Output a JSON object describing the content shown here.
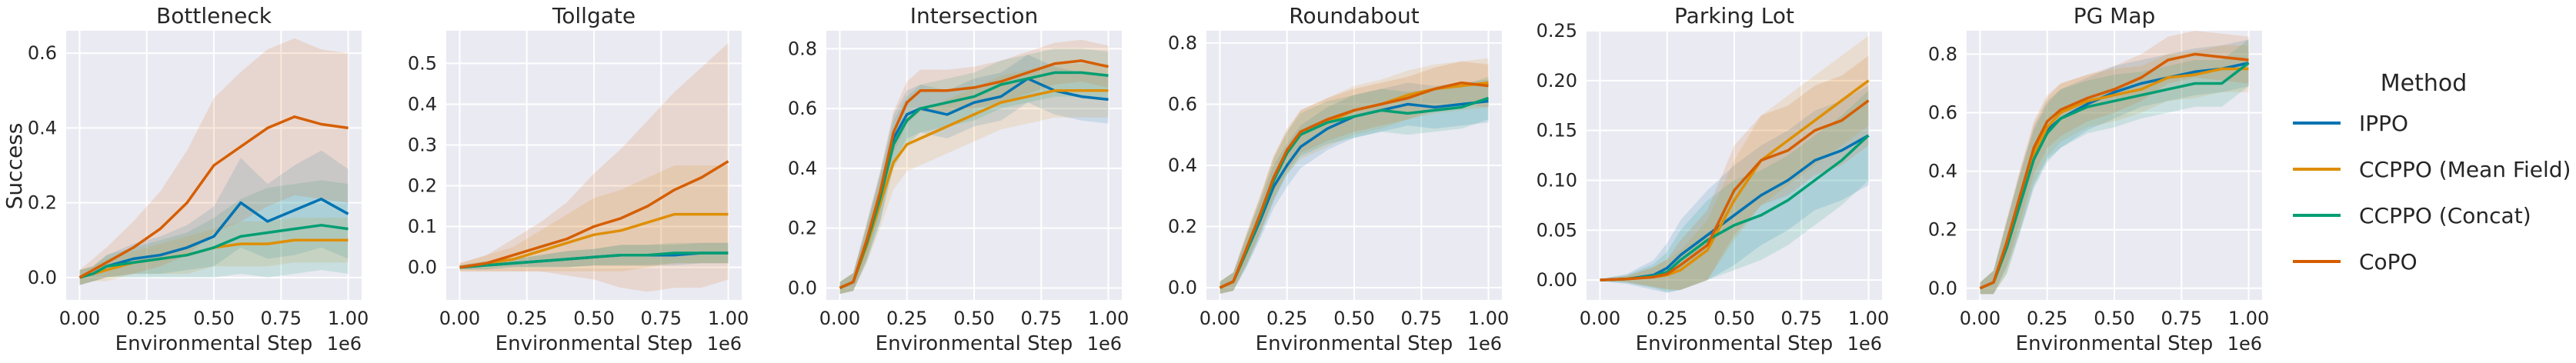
{
  "figure": {
    "ylabel": "Success",
    "xlabel": "Environmental Step",
    "x_multiplier": "1e6",
    "background": "#eaeaf2",
    "grid_color": "#ffffff"
  },
  "legend": {
    "title": "Method",
    "entries": [
      {
        "name": "IPPO",
        "color": "#0173b2"
      },
      {
        "name": "CCPPO (Mean Field)",
        "color": "#de8f05"
      },
      {
        "name": "CCPPO (Concat)",
        "color": "#029e73"
      },
      {
        "name": "CoPO",
        "color": "#d55e00"
      }
    ]
  },
  "chart_data": [
    {
      "type": "line",
      "title": "Bottleneck",
      "xlabel": "Environmental Step",
      "ylabel": "Success",
      "xlim": [
        -0.05,
        1.05
      ],
      "ylim": [
        -0.06,
        0.66
      ],
      "xticks": [
        "0.00",
        "0.25",
        "0.50",
        "0.75",
        "1.00"
      ],
      "yticks": [
        "0.0",
        "0.2",
        "0.4",
        "0.6"
      ],
      "x": [
        0,
        0.05,
        0.1,
        0.2,
        0.3,
        0.4,
        0.5,
        0.6,
        0.7,
        0.8,
        0.9,
        1.0
      ],
      "series": [
        {
          "name": "IPPO",
          "values": [
            0,
            0.01,
            0.03,
            0.05,
            0.06,
            0.08,
            0.11,
            0.2,
            0.15,
            0.18,
            0.21,
            0.17
          ],
          "band": [
            0.02,
            0.02,
            0.03,
            0.04,
            0.05,
            0.06,
            0.08,
            0.12,
            0.1,
            0.12,
            0.13,
            0.12
          ]
        },
        {
          "name": "CCPPO (Mean Field)",
          "values": [
            0,
            0.01,
            0.02,
            0.04,
            0.05,
            0.06,
            0.08,
            0.09,
            0.09,
            0.1,
            0.1,
            0.1
          ],
          "band": [
            0.02,
            0.02,
            0.03,
            0.03,
            0.04,
            0.05,
            0.05,
            0.06,
            0.06,
            0.06,
            0.06,
            0.06
          ]
        },
        {
          "name": "CCPPO (Concat)",
          "values": [
            0,
            0.01,
            0.03,
            0.04,
            0.05,
            0.06,
            0.08,
            0.11,
            0.12,
            0.13,
            0.14,
            0.13
          ],
          "band": [
            0.02,
            0.02,
            0.03,
            0.04,
            0.05,
            0.06,
            0.08,
            0.1,
            0.12,
            0.12,
            0.12,
            0.12
          ]
        },
        {
          "name": "CoPO",
          "values": [
            0,
            0.02,
            0.04,
            0.08,
            0.13,
            0.2,
            0.3,
            0.35,
            0.4,
            0.43,
            0.41,
            0.4
          ],
          "band": [
            0.02,
            0.03,
            0.04,
            0.07,
            0.1,
            0.14,
            0.18,
            0.2,
            0.21,
            0.21,
            0.2,
            0.2
          ]
        }
      ]
    },
    {
      "type": "line",
      "title": "Tollgate",
      "xlabel": "Environmental Step",
      "ylabel": "",
      "xlim": [
        -0.05,
        1.05
      ],
      "ylim": [
        -0.08,
        0.58
      ],
      "xticks": [
        "0.00",
        "0.25",
        "0.50",
        "0.75",
        "1.00"
      ],
      "yticks": [
        "0.0",
        "0.1",
        "0.2",
        "0.3",
        "0.4",
        "0.5"
      ],
      "x": [
        0,
        0.1,
        0.2,
        0.3,
        0.4,
        0.5,
        0.6,
        0.7,
        0.8,
        0.9,
        1.0
      ],
      "series": [
        {
          "name": "IPPO",
          "values": [
            0,
            0.005,
            0.01,
            0.015,
            0.02,
            0.025,
            0.03,
            0.03,
            0.03,
            0.035,
            0.035
          ],
          "band": [
            0.005,
            0.01,
            0.01,
            0.015,
            0.02,
            0.02,
            0.025,
            0.025,
            0.025,
            0.025,
            0.025
          ]
        },
        {
          "name": "CCPPO (Mean Field)",
          "values": [
            0,
            0.01,
            0.02,
            0.04,
            0.06,
            0.08,
            0.09,
            0.11,
            0.13,
            0.13,
            0.13
          ],
          "band": [
            0.01,
            0.02,
            0.03,
            0.05,
            0.07,
            0.09,
            0.1,
            0.11,
            0.12,
            0.12,
            0.12
          ]
        },
        {
          "name": "CCPPO (Concat)",
          "values": [
            0,
            0.005,
            0.01,
            0.015,
            0.02,
            0.025,
            0.03,
            0.03,
            0.035,
            0.035,
            0.035
          ],
          "band": [
            0.005,
            0.01,
            0.01,
            0.015,
            0.02,
            0.02,
            0.025,
            0.025,
            0.025,
            0.025,
            0.025
          ]
        },
        {
          "name": "CoPO",
          "values": [
            0,
            0.01,
            0.03,
            0.05,
            0.07,
            0.1,
            0.12,
            0.15,
            0.19,
            0.22,
            0.26
          ],
          "band": [
            0.01,
            0.02,
            0.04,
            0.06,
            0.09,
            0.13,
            0.17,
            0.21,
            0.24,
            0.27,
            0.29
          ]
        }
      ]
    },
    {
      "type": "line",
      "title": "Intersection",
      "xlabel": "Environmental Step",
      "ylabel": "",
      "xlim": [
        -0.05,
        1.05
      ],
      "ylim": [
        -0.04,
        0.86
      ],
      "xticks": [
        "0.00",
        "0.25",
        "0.50",
        "0.75",
        "1.00"
      ],
      "yticks": [
        "0.0",
        "0.2",
        "0.4",
        "0.6",
        "0.8"
      ],
      "x": [
        0,
        0.05,
        0.1,
        0.15,
        0.2,
        0.25,
        0.3,
        0.4,
        0.5,
        0.6,
        0.7,
        0.8,
        0.9,
        1.0
      ],
      "series": [
        {
          "name": "IPPO",
          "values": [
            0,
            0.02,
            0.15,
            0.3,
            0.5,
            0.58,
            0.6,
            0.58,
            0.62,
            0.64,
            0.7,
            0.66,
            0.64,
            0.63
          ],
          "band": [
            0.02,
            0.03,
            0.06,
            0.08,
            0.08,
            0.08,
            0.08,
            0.08,
            0.08,
            0.08,
            0.08,
            0.08,
            0.08,
            0.08
          ]
        },
        {
          "name": "CCPPO (Mean Field)",
          "values": [
            0,
            0.02,
            0.14,
            0.28,
            0.42,
            0.48,
            0.5,
            0.54,
            0.58,
            0.62,
            0.64,
            0.66,
            0.66,
            0.66
          ],
          "band": [
            0.02,
            0.03,
            0.06,
            0.08,
            0.09,
            0.09,
            0.09,
            0.09,
            0.09,
            0.09,
            0.09,
            0.09,
            0.09,
            0.09
          ]
        },
        {
          "name": "CCPPO (Concat)",
          "values": [
            0,
            0.02,
            0.15,
            0.3,
            0.48,
            0.56,
            0.6,
            0.62,
            0.64,
            0.68,
            0.7,
            0.72,
            0.72,
            0.71
          ],
          "band": [
            0.02,
            0.03,
            0.06,
            0.08,
            0.08,
            0.08,
            0.08,
            0.08,
            0.08,
            0.08,
            0.08,
            0.08,
            0.08,
            0.08
          ]
        },
        {
          "name": "CoPO",
          "values": [
            0,
            0.02,
            0.16,
            0.32,
            0.52,
            0.62,
            0.66,
            0.66,
            0.67,
            0.69,
            0.72,
            0.75,
            0.76,
            0.74
          ],
          "band": [
            0.02,
            0.03,
            0.06,
            0.07,
            0.07,
            0.07,
            0.07,
            0.07,
            0.07,
            0.07,
            0.07,
            0.07,
            0.07,
            0.07
          ]
        }
      ]
    },
    {
      "type": "line",
      "title": "Roundabout",
      "xlabel": "Environmental Step",
      "ylabel": "",
      "xlim": [
        -0.05,
        1.05
      ],
      "ylim": [
        -0.04,
        0.84
      ],
      "xticks": [
        "0.00",
        "0.25",
        "0.50",
        "0.75",
        "1.00"
      ],
      "yticks": [
        "0.0",
        "0.2",
        "0.4",
        "0.6",
        "0.8"
      ],
      "x": [
        0,
        0.05,
        0.1,
        0.15,
        0.2,
        0.25,
        0.3,
        0.4,
        0.5,
        0.6,
        0.7,
        0.8,
        0.9,
        1.0
      ],
      "series": [
        {
          "name": "IPPO",
          "values": [
            0,
            0.02,
            0.12,
            0.22,
            0.33,
            0.4,
            0.46,
            0.52,
            0.56,
            0.58,
            0.6,
            0.59,
            0.6,
            0.61
          ],
          "band": [
            0.02,
            0.03,
            0.05,
            0.06,
            0.07,
            0.07,
            0.07,
            0.07,
            0.07,
            0.07,
            0.07,
            0.07,
            0.07,
            0.07
          ]
        },
        {
          "name": "CCPPO (Mean Field)",
          "values": [
            0,
            0.02,
            0.13,
            0.24,
            0.36,
            0.44,
            0.5,
            0.54,
            0.58,
            0.6,
            0.63,
            0.65,
            0.66,
            0.67
          ],
          "band": [
            0.02,
            0.03,
            0.05,
            0.06,
            0.07,
            0.07,
            0.08,
            0.08,
            0.08,
            0.08,
            0.08,
            0.08,
            0.08,
            0.08
          ]
        },
        {
          "name": "CCPPO (Concat)",
          "values": [
            0,
            0.02,
            0.12,
            0.23,
            0.35,
            0.44,
            0.5,
            0.54,
            0.56,
            0.58,
            0.57,
            0.58,
            0.59,
            0.62
          ],
          "band": [
            0.02,
            0.03,
            0.05,
            0.06,
            0.07,
            0.07,
            0.07,
            0.07,
            0.07,
            0.07,
            0.07,
            0.07,
            0.07,
            0.07
          ]
        },
        {
          "name": "CoPO",
          "values": [
            0,
            0.02,
            0.13,
            0.24,
            0.36,
            0.45,
            0.51,
            0.55,
            0.58,
            0.6,
            0.62,
            0.65,
            0.67,
            0.66
          ],
          "band": [
            0.02,
            0.03,
            0.05,
            0.06,
            0.07,
            0.07,
            0.07,
            0.07,
            0.07,
            0.07,
            0.07,
            0.07,
            0.07,
            0.07
          ]
        }
      ]
    },
    {
      "type": "line",
      "title": "Parking Lot",
      "xlabel": "Environmental Step",
      "ylabel": "",
      "xlim": [
        -0.05,
        1.05
      ],
      "ylim": [
        -0.02,
        0.25
      ],
      "xticks": [
        "0.00",
        "0.25",
        "0.50",
        "0.75",
        "1.00"
      ],
      "yticks": [
        "0.00",
        "0.05",
        "0.10",
        "0.15",
        "0.20",
        "0.25"
      ],
      "x": [
        0,
        0.1,
        0.2,
        0.25,
        0.3,
        0.4,
        0.5,
        0.6,
        0.7,
        0.8,
        0.9,
        1.0
      ],
      "series": [
        {
          "name": "IPPO",
          "values": [
            0,
            0.001,
            0.005,
            0.012,
            0.025,
            0.045,
            0.065,
            0.085,
            0.1,
            0.12,
            0.13,
            0.145
          ],
          "band": [
            0.001,
            0.005,
            0.015,
            0.025,
            0.035,
            0.045,
            0.05,
            0.05,
            0.05,
            0.05,
            0.05,
            0.05
          ]
        },
        {
          "name": "CCPPO (Mean Field)",
          "values": [
            0,
            0.001,
            0.003,
            0.005,
            0.01,
            0.03,
            0.08,
            0.12,
            0.14,
            0.16,
            0.18,
            0.2
          ],
          "band": [
            0.001,
            0.003,
            0.01,
            0.015,
            0.02,
            0.03,
            0.04,
            0.045,
            0.045,
            0.045,
            0.045,
            0.045
          ]
        },
        {
          "name": "CCPPO (Concat)",
          "values": [
            0,
            0.001,
            0.004,
            0.008,
            0.02,
            0.04,
            0.055,
            0.065,
            0.08,
            0.1,
            0.12,
            0.145
          ],
          "band": [
            0.001,
            0.004,
            0.012,
            0.02,
            0.03,
            0.04,
            0.045,
            0.045,
            0.045,
            0.045,
            0.045,
            0.045
          ]
        },
        {
          "name": "CoPO",
          "values": [
            0,
            0.001,
            0.003,
            0.006,
            0.015,
            0.035,
            0.09,
            0.12,
            0.13,
            0.15,
            0.16,
            0.18
          ],
          "band": [
            0.001,
            0.003,
            0.01,
            0.015,
            0.025,
            0.035,
            0.045,
            0.045,
            0.045,
            0.045,
            0.045,
            0.045
          ]
        }
      ]
    },
    {
      "type": "line",
      "title": "PG Map",
      "xlabel": "Environmental Step",
      "ylabel": "",
      "xlim": [
        -0.05,
        1.05
      ],
      "ylim": [
        -0.04,
        0.88
      ],
      "xticks": [
        "0.00",
        "0.25",
        "0.50",
        "0.75",
        "1.00"
      ],
      "yticks": [
        "0.0",
        "0.2",
        "0.4",
        "0.6",
        "0.8"
      ],
      "x": [
        0,
        0.05,
        0.1,
        0.15,
        0.2,
        0.25,
        0.3,
        0.4,
        0.5,
        0.6,
        0.7,
        0.8,
        0.9,
        1.0
      ],
      "series": [
        {
          "name": "IPPO",
          "values": [
            0,
            0.02,
            0.15,
            0.3,
            0.45,
            0.54,
            0.58,
            0.63,
            0.67,
            0.7,
            0.72,
            0.74,
            0.75,
            0.77
          ],
          "band": [
            0.02,
            0.04,
            0.08,
            0.1,
            0.1,
            0.1,
            0.1,
            0.09,
            0.09,
            0.08,
            0.08,
            0.08,
            0.08,
            0.08
          ]
        },
        {
          "name": "CCPPO (Mean Field)",
          "values": [
            0,
            0.02,
            0.14,
            0.3,
            0.46,
            0.55,
            0.6,
            0.64,
            0.66,
            0.68,
            0.72,
            0.73,
            0.75,
            0.75
          ],
          "band": [
            0.02,
            0.04,
            0.09,
            0.1,
            0.1,
            0.1,
            0.1,
            0.09,
            0.09,
            0.08,
            0.08,
            0.08,
            0.08,
            0.08
          ]
        },
        {
          "name": "CCPPO (Concat)",
          "values": [
            0,
            0.02,
            0.14,
            0.29,
            0.44,
            0.53,
            0.58,
            0.62,
            0.64,
            0.66,
            0.68,
            0.7,
            0.7,
            0.77
          ],
          "band": [
            0.02,
            0.04,
            0.09,
            0.1,
            0.1,
            0.1,
            0.1,
            0.09,
            0.09,
            0.08,
            0.08,
            0.08,
            0.08,
            0.08
          ]
        },
        {
          "name": "CoPO",
          "values": [
            0,
            0.02,
            0.16,
            0.32,
            0.48,
            0.57,
            0.61,
            0.65,
            0.68,
            0.72,
            0.78,
            0.8,
            0.79,
            0.78
          ],
          "band": [
            0.02,
            0.04,
            0.08,
            0.09,
            0.09,
            0.09,
            0.09,
            0.08,
            0.08,
            0.08,
            0.08,
            0.08,
            0.08,
            0.08
          ]
        }
      ]
    }
  ]
}
